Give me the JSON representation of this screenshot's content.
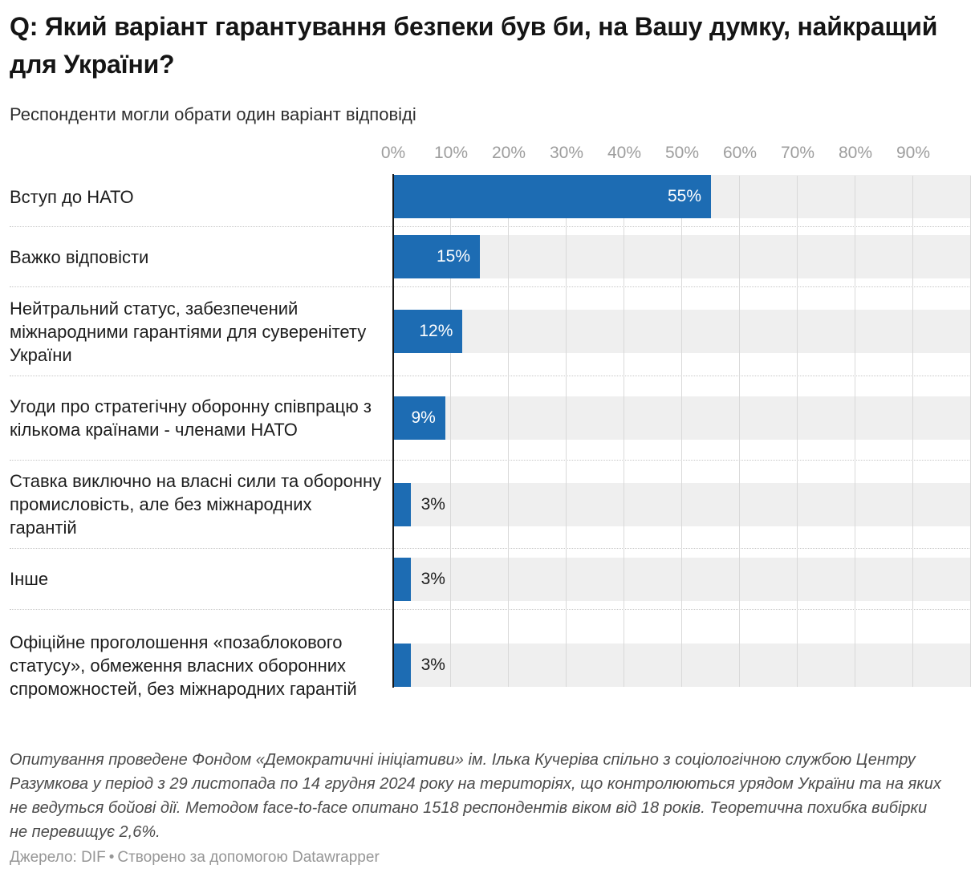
{
  "header": {
    "title": "Q: Який варіант гарантування безпеки був би, на Вашу думку, найкращий для України?",
    "subtitle": "Респонденти могли обрати один варіант відповіді"
  },
  "chart_data": {
    "type": "bar",
    "orientation": "horizontal",
    "title": "Q: Який варіант гарантування безпеки був би, на Вашу думку, найкращий для України?",
    "subtitle": "Респонденти могли обрати один варіант відповіді",
    "categories": [
      "Вступ до НАТО",
      "Важко відповісти",
      "Нейтральний статус, забезпечений міжнародними гарантіями для суверенітету України",
      "Угоди про стратегічну оборонну співпрацю з кількома країнами - членами НАТО",
      "Ставка виключно на власні сили та оборонну промисловість, але без міжнародних гарантій",
      "Інше",
      "Офіційне проголошення «позаблокового статусу», обмеження власних оборонних спроможностей, без міжнародних гарантій"
    ],
    "values": [
      55,
      15,
      12,
      9,
      3,
      3,
      3
    ],
    "value_labels": [
      "55%",
      "15%",
      "12%",
      "9%",
      "3%",
      "3%",
      "3%"
    ],
    "xlabel": "",
    "ylabel": "",
    "xlim": [
      0,
      100
    ],
    "x_ticks": [
      "0%",
      "10%",
      "20%",
      "30%",
      "40%",
      "50%",
      "60%",
      "70%",
      "80%",
      "90%"
    ],
    "grid": true,
    "legend": false
  },
  "rows": [
    {
      "label": "Вступ до НАТО",
      "value": 55,
      "value_label": "55%",
      "value_position": "inside"
    },
    {
      "label": "Важко відповісти",
      "value": 15,
      "value_label": "15%",
      "value_position": "inside"
    },
    {
      "label": "Нейтральний статус, забезпечений міжнародними гарантіями для суверенітету України",
      "value": 12,
      "value_label": "12%",
      "value_position": "inside"
    },
    {
      "label": "Угоди про стратегічну оборонну співпрацю з кількома країнами - членами НАТО",
      "value": 9,
      "value_label": "9%",
      "value_position": "inside"
    },
    {
      "label": "Ставка виключно на власні сили та оборонну промисловість, але без міжнародних гарантій",
      "value": 3,
      "value_label": "3%",
      "value_position": "outside"
    },
    {
      "label": "Інше",
      "value": 3,
      "value_label": "3%",
      "value_position": "outside"
    },
    {
      "label": "Офіційне проголошення «позаблокового статусу», обмеження власних оборонних спроможностей, без міжнародних гарантій",
      "value": 3,
      "value_label": "3%",
      "value_position": "outside"
    }
  ],
  "footer": {
    "notes": "Опитування проведене Фондом «Демократичні ініціативи» ім. Ілька Кучеріва спільно з соціологічною службою Центру Разумкова у період з 29 листопада по 14 грудня 2024 року на територіях, що контролюються урядом України та на яких не ведуться бойові дії. Методом face-to-face опитано 1518 респондентів віком від 18 років. Теоретична похибка вибірки не перевищує 2,6%.",
    "source_label": "Джерело: DIF",
    "separator": "•",
    "credit": "Створено за допомогою Datawrapper"
  },
  "colors": {
    "bar": "#1d6cb3",
    "track": "#efefef",
    "grid": "#d9d9d9"
  }
}
